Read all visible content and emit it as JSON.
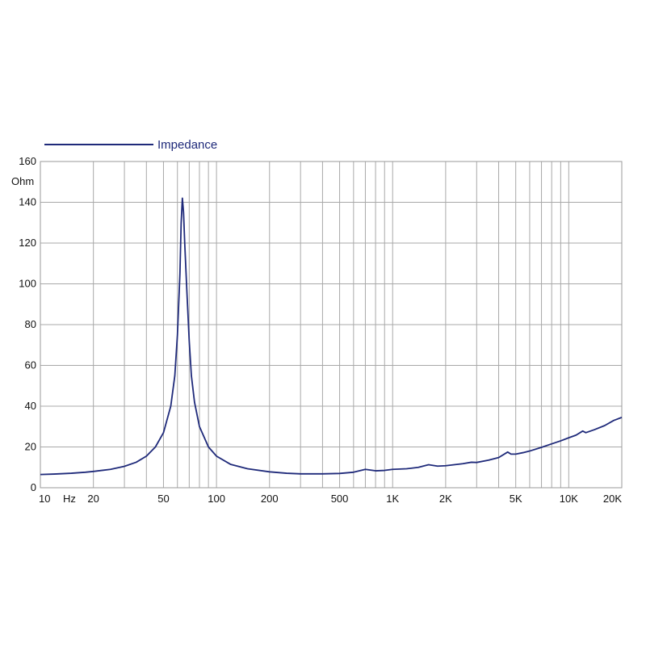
{
  "chart_data": {
    "type": "line",
    "title": "",
    "xscale": "log",
    "yscale": "linear",
    "xlim": [
      10,
      20000
    ],
    "ylim": [
      0,
      160
    ],
    "grid": true,
    "legend_position": "top-left",
    "ylabel": "Ohm",
    "xlabel": "Hz",
    "x_tick_labels": [
      {
        "value": 10,
        "label": "10"
      },
      {
        "value": 20,
        "label": "20"
      },
      {
        "value": 50,
        "label": "50"
      },
      {
        "value": 100,
        "label": "100"
      },
      {
        "value": 200,
        "label": "200"
      },
      {
        "value": 500,
        "label": "500"
      },
      {
        "value": 1000,
        "label": "1K"
      },
      {
        "value": 2000,
        "label": "2K"
      },
      {
        "value": 5000,
        "label": "5K"
      },
      {
        "value": 10000,
        "label": "10K"
      },
      {
        "value": 20000,
        "label": "20K"
      }
    ],
    "y_tick_labels": [
      {
        "value": 0,
        "label": "0"
      },
      {
        "value": 20,
        "label": "20"
      },
      {
        "value": 40,
        "label": "40"
      },
      {
        "value": 60,
        "label": "60"
      },
      {
        "value": 80,
        "label": "80"
      },
      {
        "value": 100,
        "label": "100"
      },
      {
        "value": 120,
        "label": "120"
      },
      {
        "value": 140,
        "label": "140"
      },
      {
        "value": 160,
        "label": "160"
      }
    ],
    "x_gridlines": [
      10,
      20,
      30,
      40,
      50,
      60,
      70,
      80,
      90,
      100,
      200,
      300,
      400,
      500,
      600,
      700,
      800,
      900,
      1000,
      2000,
      3000,
      4000,
      5000,
      6000,
      7000,
      8000,
      9000,
      10000,
      20000
    ],
    "series": [
      {
        "name": "Impedance",
        "color": "#1f2a7a",
        "points": [
          [
            10,
            6.5
          ],
          [
            12,
            6.7
          ],
          [
            15,
            7.1
          ],
          [
            18,
            7.6
          ],
          [
            20,
            8.0
          ],
          [
            25,
            9.0
          ],
          [
            30,
            10.5
          ],
          [
            35,
            12.5
          ],
          [
            40,
            15.5
          ],
          [
            45,
            20.0
          ],
          [
            50,
            27.0
          ],
          [
            55,
            40.0
          ],
          [
            58,
            55.0
          ],
          [
            60,
            75.0
          ],
          [
            62,
            105.0
          ],
          [
            63,
            130.0
          ],
          [
            64,
            142.0
          ],
          [
            65,
            135.0
          ],
          [
            66,
            120.0
          ],
          [
            68,
            95.0
          ],
          [
            70,
            72.0
          ],
          [
            72,
            55.0
          ],
          [
            75,
            42.0
          ],
          [
            80,
            30.0
          ],
          [
            90,
            20.0
          ],
          [
            100,
            15.5
          ],
          [
            120,
            11.5
          ],
          [
            150,
            9.3
          ],
          [
            200,
            7.8
          ],
          [
            250,
            7.1
          ],
          [
            300,
            6.8
          ],
          [
            400,
            6.8
          ],
          [
            500,
            7.0
          ],
          [
            600,
            7.6
          ],
          [
            700,
            9.0
          ],
          [
            800,
            8.3
          ],
          [
            900,
            8.5
          ],
          [
            1000,
            9.0
          ],
          [
            1200,
            9.3
          ],
          [
            1400,
            10.0
          ],
          [
            1600,
            11.3
          ],
          [
            1800,
            10.6
          ],
          [
            2000,
            10.8
          ],
          [
            2500,
            11.8
          ],
          [
            2800,
            12.5
          ],
          [
            3000,
            12.4
          ],
          [
            3500,
            13.5
          ],
          [
            4000,
            14.8
          ],
          [
            4500,
            17.5
          ],
          [
            4700,
            16.5
          ],
          [
            5000,
            16.5
          ],
          [
            5500,
            17.2
          ],
          [
            6000,
            18.0
          ],
          [
            7000,
            19.8
          ],
          [
            8000,
            21.5
          ],
          [
            9000,
            23.0
          ],
          [
            10000,
            24.5
          ],
          [
            11000,
            25.8
          ],
          [
            12000,
            27.8
          ],
          [
            12500,
            27.0
          ],
          [
            14000,
            28.5
          ],
          [
            16000,
            30.5
          ],
          [
            18000,
            33.0
          ],
          [
            20000,
            34.5
          ]
        ]
      }
    ]
  }
}
